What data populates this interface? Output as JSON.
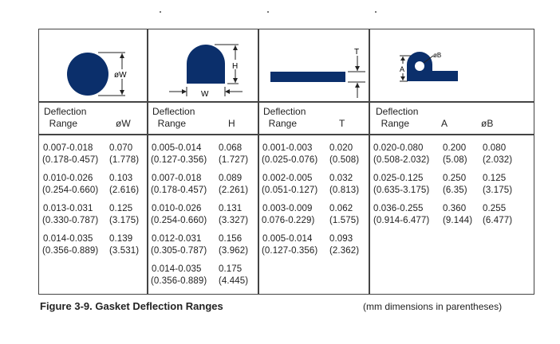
{
  "columns": [
    {
      "header": [
        "Deflection",
        "Range"
      ],
      "dims": [
        "øW"
      ],
      "figure_label": [
        "øW"
      ],
      "rows": [
        [
          "0.007-0.018",
          "0.070",
          "(0.178-0.457)",
          "(1.778)"
        ],
        [
          "0.010-0.026",
          "0.103",
          "(0.254-0.660)",
          "(2.616)"
        ],
        [
          "0.013-0.031",
          "0.125",
          "(0.330-0.787)",
          "(3.175)"
        ],
        [
          "0.014-0.035",
          "0.139",
          "(0.356-0.889)",
          "(3.531)"
        ]
      ]
    },
    {
      "header": [
        "Deflection",
        "Range"
      ],
      "dims": [
        "H"
      ],
      "figure_label": [
        "H",
        "W"
      ],
      "rows": [
        [
          "0.005-0.014",
          "0.068",
          "(0.127-0.356)",
          "(1.727)"
        ],
        [
          "0.007-0.018",
          "0.089",
          "(0.178-0.457)",
          "(2.261)"
        ],
        [
          "0.010-0.026",
          "0.131",
          "(0.254-0.660)",
          "(3.327)"
        ],
        [
          "0.012-0.031",
          "0.156",
          "(0.305-0.787)",
          "(3.962)"
        ],
        [
          "0.014-0.035",
          "0.175",
          "(0.356-0.889)",
          "(4.445)"
        ]
      ]
    },
    {
      "header": [
        "Deflection",
        "Range"
      ],
      "dims": [
        "T"
      ],
      "figure_label": [
        "T"
      ],
      "rows": [
        [
          "0.001-0.003",
          "0.020",
          "(0.025-0.076)",
          "(0.508)"
        ],
        [
          "0.002-0.005",
          "0.032",
          "(0.051-0.127)",
          "(0.813)"
        ],
        [
          "0.003-0.009",
          "0.062",
          "0.076-0.229)",
          "(1.575)"
        ],
        [
          "0.005-0.014",
          "0.093",
          "(0.127-0.356)",
          "(2.362)"
        ]
      ]
    },
    {
      "header": [
        "Deflection",
        "Range"
      ],
      "dims": [
        "A",
        "øB"
      ],
      "figure_label": [
        "A",
        "øB"
      ],
      "rows": [
        [
          "0.020-0.080",
          "0.200",
          "0.080",
          "(0.508-2.032)",
          "(5.08)",
          "(2.032)"
        ],
        [
          "0.025-0.125",
          "0.250",
          "0.125",
          "(0.635-3.175)",
          "(6.35)",
          "(3.175)"
        ],
        [
          "0.036-0.255",
          "0.360",
          "0.255",
          "(0.914-6.477)",
          "(9.144)",
          "(6.477)"
        ]
      ]
    }
  ],
  "caption": "Figure 3-9.   Gasket Deflection Ranges",
  "note": "(mm dimensions in parentheses)",
  "colors": {
    "gasket": "#0b2f6b"
  }
}
